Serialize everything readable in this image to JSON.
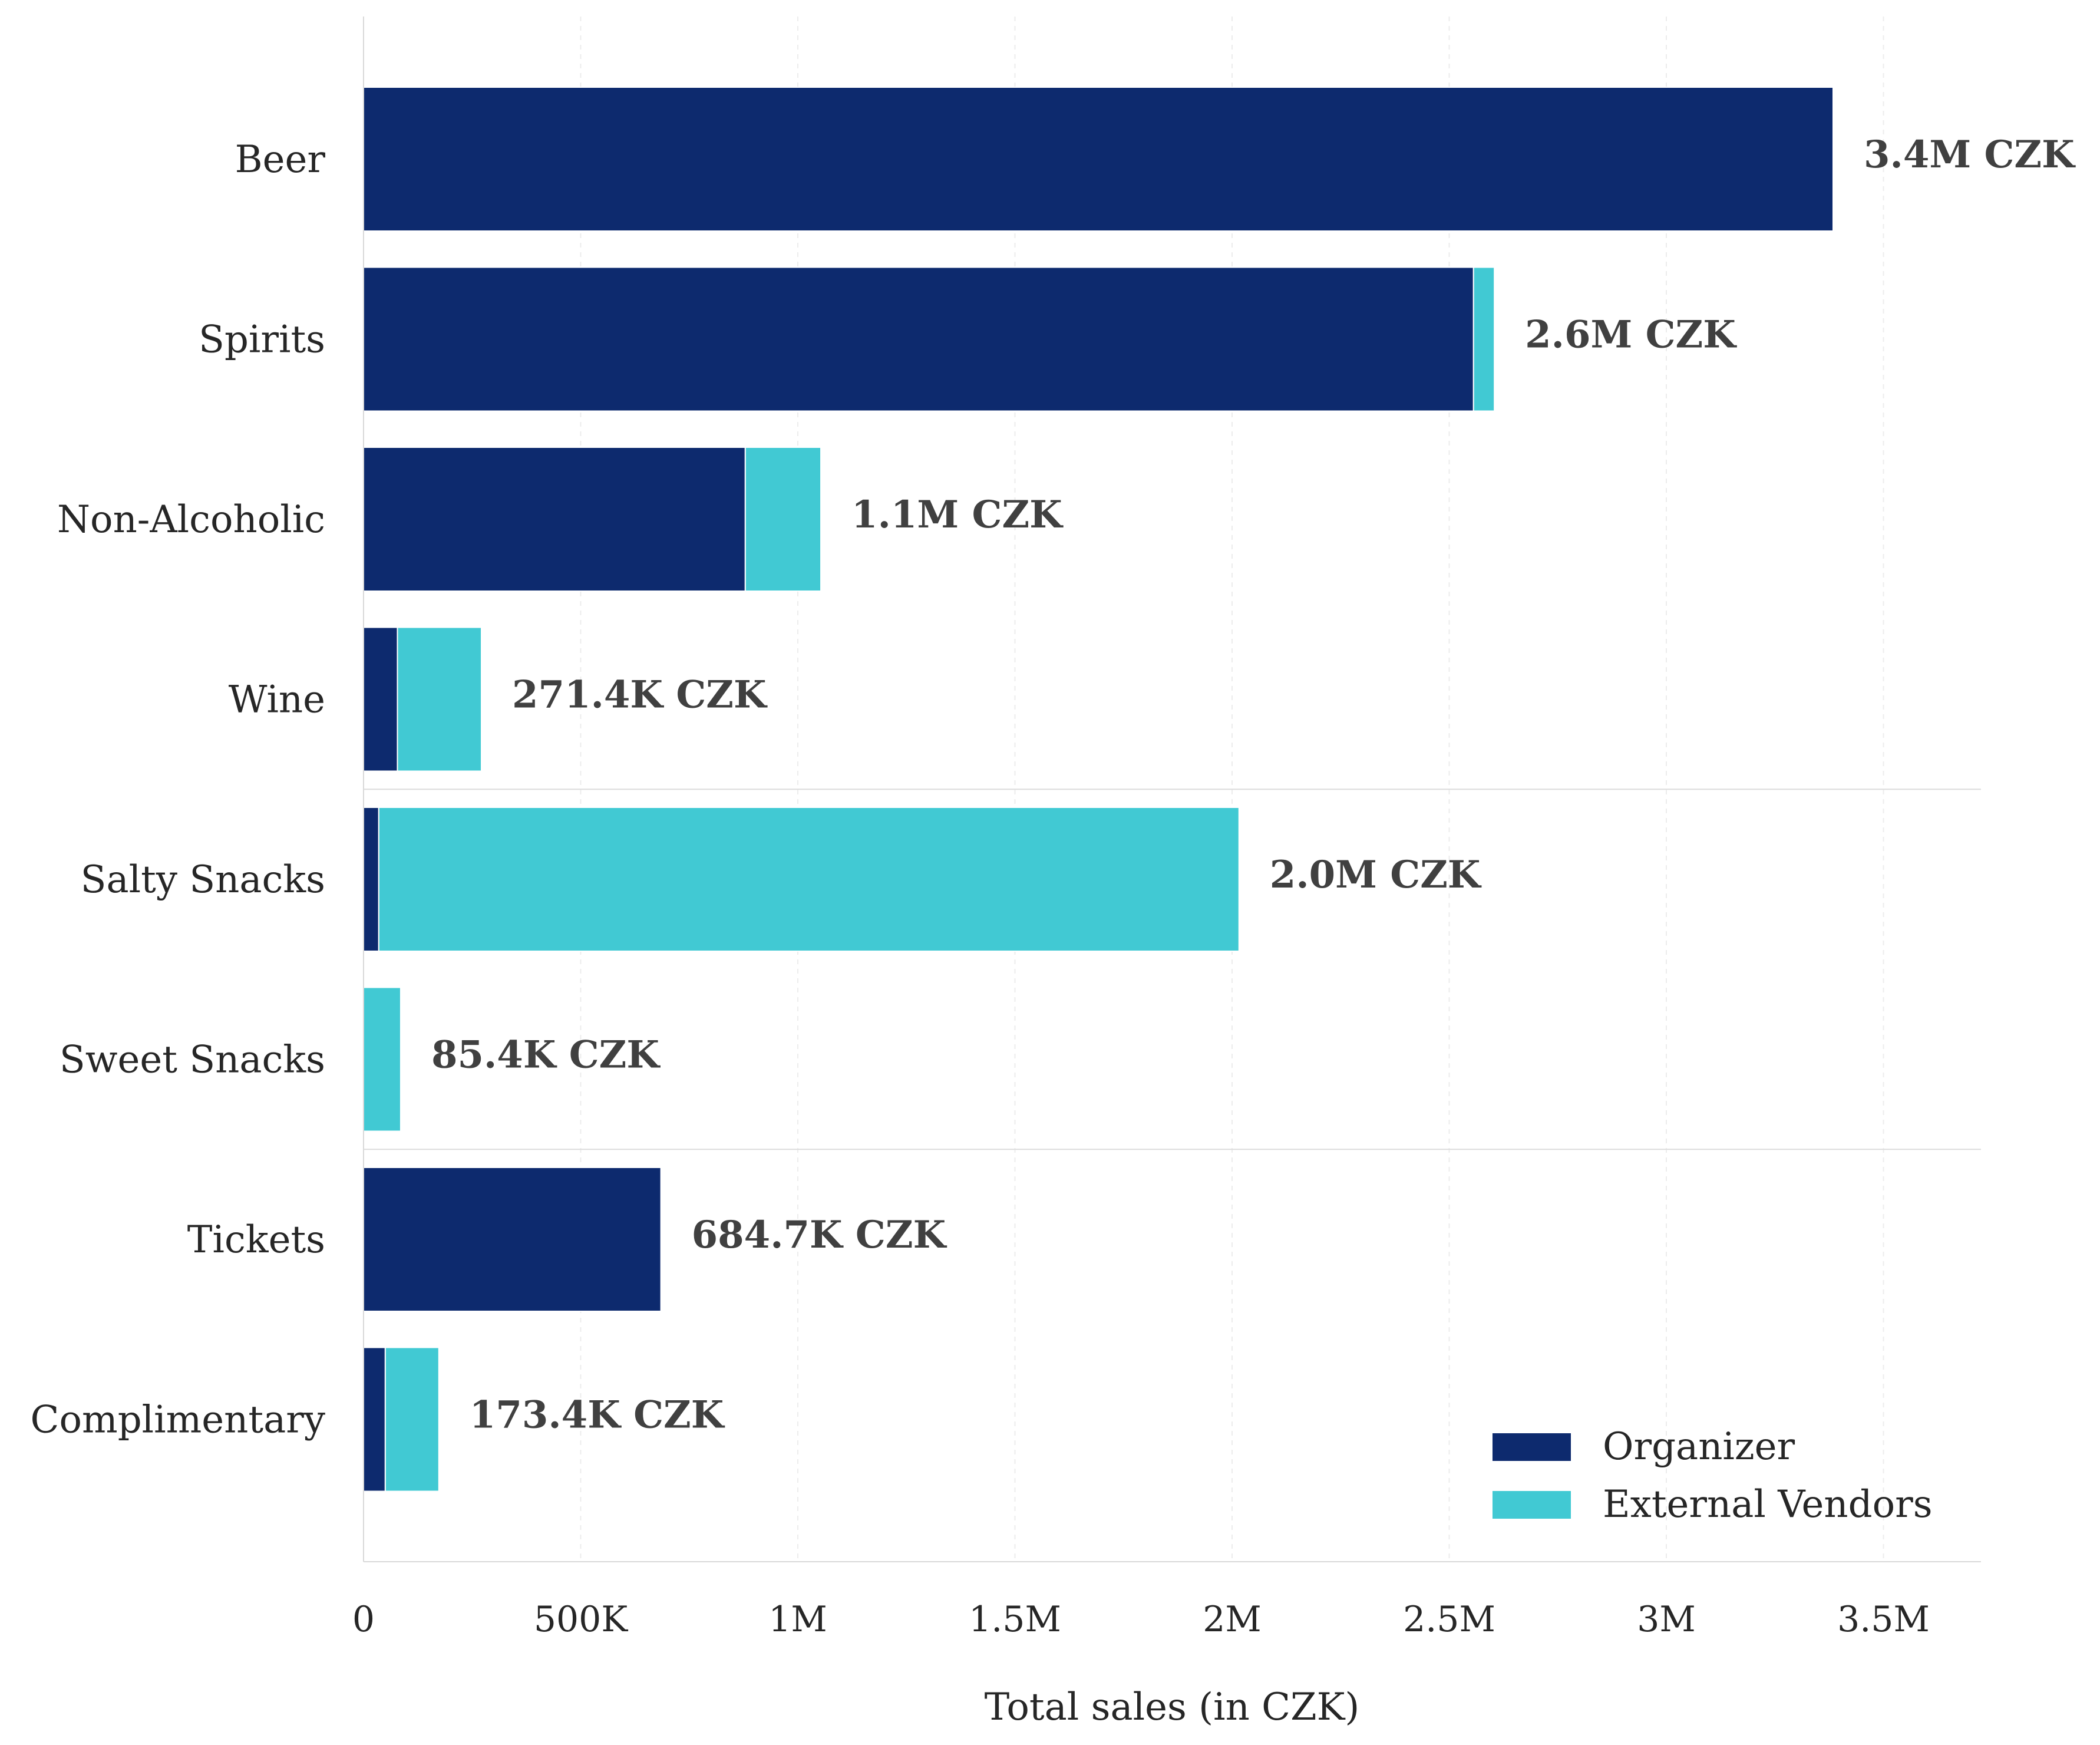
{
  "chart_data": {
    "type": "bar",
    "orientation": "horizontal",
    "stacked": true,
    "title": "",
    "xlabel": "Total sales (in CZK)",
    "ylabel": "",
    "xlim": [
      0,
      3720000
    ],
    "grid": "vertical dashed",
    "categories": [
      "Beer",
      "Spirits",
      "Non-Alcoholic",
      "Wine",
      "Salty Snacks",
      "Sweet Snacks",
      "Tickets",
      "Complimentary"
    ],
    "group_separators_after": [
      "Wine",
      "Sweet Snacks"
    ],
    "x_ticks": [
      {
        "value": 0,
        "label": "0"
      },
      {
        "value": 500000,
        "label": "500K"
      },
      {
        "value": 1000000,
        "label": "1M"
      },
      {
        "value": 1500000,
        "label": "1.5M"
      },
      {
        "value": 2000000,
        "label": "2M"
      },
      {
        "value": 2500000,
        "label": "2.5M"
      },
      {
        "value": 3000000,
        "label": "3M"
      },
      {
        "value": 3500000,
        "label": "3.5M"
      }
    ],
    "series": [
      {
        "name": "Organizer",
        "color": "#0d2a6e",
        "values": [
          3384000,
          2556000,
          879000,
          78000,
          35000,
          0,
          684700,
          50000
        ]
      },
      {
        "name": "External Vendors",
        "color": "#41c9d3",
        "values": [
          0,
          48000,
          174000,
          193400,
          1981000,
          85400,
          0,
          123400
        ]
      }
    ],
    "total_labels": [
      "3.4M CZK",
      "2.6M CZK",
      "1.1M CZK",
      "271.4K CZK",
      "2.0M CZK",
      "85.4K CZK",
      "684.7K CZK",
      "173.4K CZK"
    ],
    "legend": {
      "position": "bottom-right",
      "entries": [
        "Organizer",
        "External Vendors"
      ]
    }
  }
}
